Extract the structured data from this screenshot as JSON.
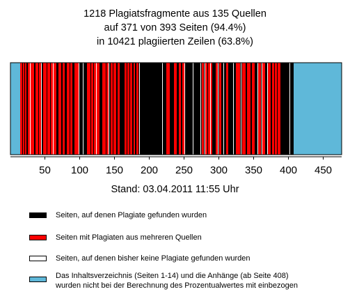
{
  "title_lines": [
    "1218 Plagiatsfragmente aus 135 Quellen",
    "auf 371 von 393 Seiten (94.4%)",
    "in 10421 plagiierten Zeilen (63.8%)"
  ],
  "stand": "Stand: 03.04.2011 11:55 Uhr",
  "colors": {
    "plagiat": "#000000",
    "mehrere_quellen": "#ff0000",
    "kein_plagiat": "#ffffff",
    "nicht_gewertet": "#5fb8d9"
  },
  "legend": [
    {
      "key": "plagiat",
      "text": "Seiten, auf denen Plagiate gefunden wurden"
    },
    {
      "key": "mehrere_quellen",
      "text": "Seiten mit Plagiaten aus mehreren Quellen"
    },
    {
      "key": "kein_plagiat",
      "text": "Seiten, auf denen bisher keine Plagiate gefunden wurden"
    },
    {
      "key": "nicht_gewertet",
      "text": "Das Inhaltsverzeichnis (Seiten 1-14) und die Anhänge (ab Seite 408)\nwurden nicht bei der Berechnung des Prozentualwertes mit einbezogen"
    }
  ],
  "chart_data": {
    "type": "bar",
    "title": "1218 Plagiatsfragmente aus 135 Quellen auf 371 von 393 Seiten (94.4%) in 10421 plagiierten Zeilen (63.8%)",
    "xlabel": "",
    "ylabel": "",
    "xlim": [
      1,
      476
    ],
    "xticks": [
      50,
      100,
      150,
      200,
      250,
      300,
      350,
      400,
      450
    ],
    "excluded_pages": [
      [
        1,
        14
      ],
      [
        408,
        476
      ]
    ],
    "multi_source_ranges": [
      [
        15,
        17
      ],
      [
        19,
        20
      ],
      [
        22,
        23
      ],
      [
        26,
        28
      ],
      [
        30,
        34
      ],
      [
        37,
        40
      ],
      [
        42,
        44
      ],
      [
        48,
        52
      ],
      [
        54,
        57
      ],
      [
        59,
        61
      ],
      [
        63,
        66
      ],
      [
        70,
        73
      ],
      [
        76,
        78
      ],
      [
        82,
        85
      ],
      [
        87,
        89
      ],
      [
        93,
        98
      ],
      [
        111,
        115
      ],
      [
        117,
        119
      ],
      [
        121,
        123
      ],
      [
        125,
        128
      ],
      [
        133,
        137
      ],
      [
        139,
        141
      ],
      [
        145,
        147
      ],
      [
        149,
        152
      ],
      [
        155,
        157
      ],
      [
        165,
        167
      ],
      [
        169,
        171
      ],
      [
        173,
        175
      ],
      [
        178,
        179
      ],
      [
        182,
        184
      ],
      [
        225,
        229
      ],
      [
        236,
        239
      ],
      [
        243,
        245
      ],
      [
        248,
        250
      ],
      [
        276,
        278
      ],
      [
        281,
        283
      ],
      [
        285,
        287
      ],
      [
        289,
        290
      ],
      [
        296,
        298
      ],
      [
        301,
        303
      ],
      [
        311,
        313
      ],
      [
        325,
        330
      ],
      [
        334,
        338
      ],
      [
        341,
        345
      ],
      [
        348,
        351
      ],
      [
        357,
        360
      ],
      [
        363,
        366
      ],
      [
        371,
        374
      ],
      [
        377,
        379
      ],
      [
        381,
        383
      ],
      [
        385,
        388
      ]
    ],
    "no_plagiarism_pages": [
      29,
      45,
      62,
      99,
      105,
      124,
      142,
      186,
      219,
      251,
      263,
      274,
      280,
      288,
      299,
      307,
      321,
      332,
      356,
      362,
      370,
      402
    ],
    "x_tick_labels": [
      "50",
      "100",
      "150",
      "200",
      "250",
      "300",
      "350",
      "400",
      "450"
    ]
  }
}
